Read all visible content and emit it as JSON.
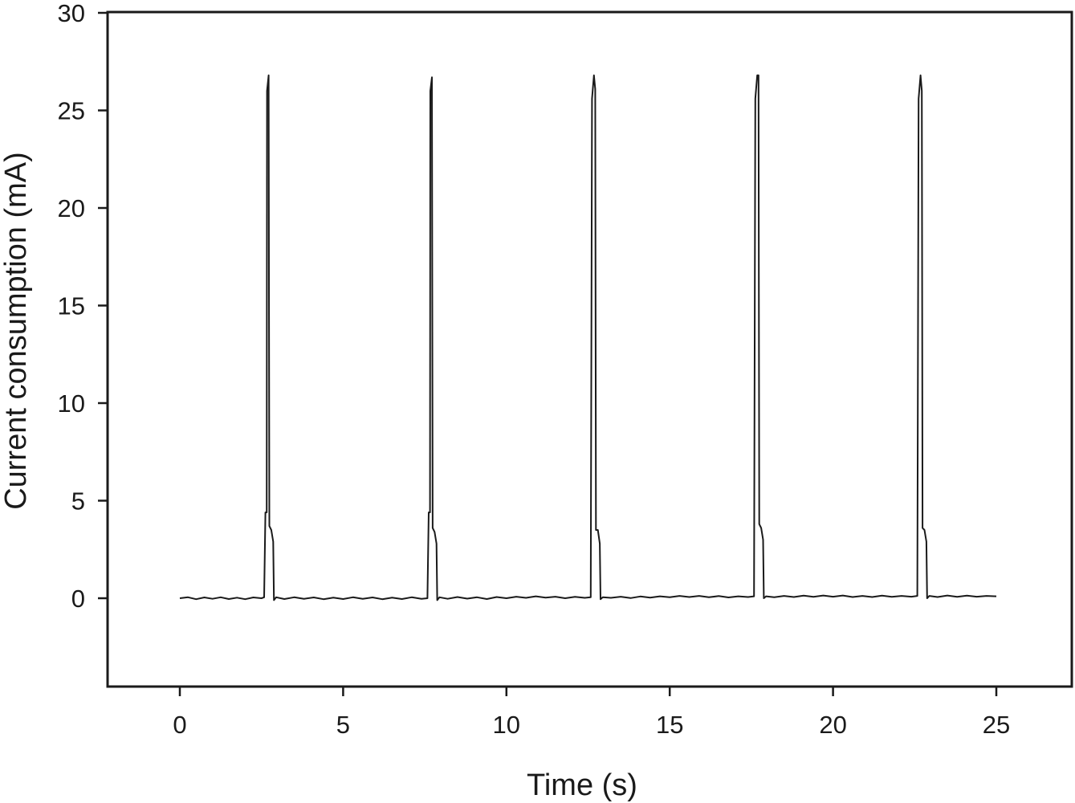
{
  "chart_data": {
    "type": "line",
    "title": "",
    "xlabel": "Time (s)",
    "ylabel": "Current consumption (mA)",
    "xlim": [
      -2.2,
      27.3
    ],
    "ylim": [
      -4.5,
      30
    ],
    "grid": false,
    "x_ticks": [
      0,
      5,
      10,
      15,
      20,
      25
    ],
    "y_ticks": [
      0,
      5,
      10,
      15,
      20,
      25,
      30
    ],
    "x_tick_labels": [
      "0",
      "5",
      "10",
      "15",
      "20",
      "25"
    ],
    "y_tick_labels": [
      "0",
      "5",
      "10",
      "15",
      "20",
      "25",
      "30"
    ],
    "series": [
      {
        "baseline_current": 0.0,
        "pulse_start_times": [
          2.6,
          7.6,
          12.6,
          17.6,
          22.6
        ],
        "peak_current": 26.8,
        "points": [
          [
            0.0,
            0.0
          ],
          [
            0.25,
            0.05
          ],
          [
            0.5,
            -0.05
          ],
          [
            0.75,
            0.04
          ],
          [
            1.0,
            -0.03
          ],
          [
            1.25,
            0.05
          ],
          [
            1.5,
            -0.04
          ],
          [
            1.75,
            0.03
          ],
          [
            2.0,
            -0.05
          ],
          [
            2.25,
            0.04
          ],
          [
            2.5,
            0.0
          ],
          [
            2.58,
            0.05
          ],
          [
            2.62,
            4.4
          ],
          [
            2.66,
            4.4
          ],
          [
            2.67,
            26.0
          ],
          [
            2.72,
            26.8
          ],
          [
            2.74,
            3.7
          ],
          [
            2.8,
            3.5
          ],
          [
            2.86,
            2.9
          ],
          [
            2.88,
            -0.1
          ],
          [
            2.95,
            0.05
          ],
          [
            3.2,
            -0.04
          ],
          [
            3.5,
            0.05
          ],
          [
            3.8,
            -0.03
          ],
          [
            4.1,
            0.04
          ],
          [
            4.4,
            -0.05
          ],
          [
            4.7,
            0.03
          ],
          [
            5.0,
            -0.04
          ],
          [
            5.3,
            0.05
          ],
          [
            5.6,
            -0.03
          ],
          [
            5.9,
            0.04
          ],
          [
            6.2,
            -0.05
          ],
          [
            6.5,
            0.03
          ],
          [
            6.8,
            -0.04
          ],
          [
            7.1,
            0.05
          ],
          [
            7.4,
            -0.03
          ],
          [
            7.58,
            0.0
          ],
          [
            7.62,
            4.4
          ],
          [
            7.66,
            4.4
          ],
          [
            7.67,
            26.0
          ],
          [
            7.72,
            26.7
          ],
          [
            7.74,
            3.6
          ],
          [
            7.8,
            3.4
          ],
          [
            7.86,
            2.8
          ],
          [
            7.88,
            -0.1
          ],
          [
            7.95,
            0.05
          ],
          [
            8.2,
            -0.03
          ],
          [
            8.5,
            0.06
          ],
          [
            8.8,
            -0.02
          ],
          [
            9.1,
            0.05
          ],
          [
            9.4,
            -0.04
          ],
          [
            9.7,
            0.06
          ],
          [
            10.0,
            0.0
          ],
          [
            10.3,
            0.08
          ],
          [
            10.6,
            0.02
          ],
          [
            10.9,
            0.1
          ],
          [
            11.2,
            0.03
          ],
          [
            11.5,
            0.08
          ],
          [
            11.8,
            0.0
          ],
          [
            12.1,
            0.07
          ],
          [
            12.4,
            0.02
          ],
          [
            12.58,
            0.05
          ],
          [
            12.62,
            25.6
          ],
          [
            12.68,
            26.8
          ],
          [
            12.72,
            26.1
          ],
          [
            12.74,
            3.5
          ],
          [
            12.8,
            3.5
          ],
          [
            12.86,
            2.8
          ],
          [
            12.88,
            -0.05
          ],
          [
            12.95,
            0.05
          ],
          [
            13.2,
            0.02
          ],
          [
            13.5,
            0.08
          ],
          [
            13.8,
            0.01
          ],
          [
            14.1,
            0.09
          ],
          [
            14.4,
            0.03
          ],
          [
            14.7,
            0.1
          ],
          [
            15.0,
            0.05
          ],
          [
            15.3,
            0.12
          ],
          [
            15.6,
            0.06
          ],
          [
            15.9,
            0.12
          ],
          [
            16.2,
            0.05
          ],
          [
            16.5,
            0.11
          ],
          [
            16.8,
            0.04
          ],
          [
            17.1,
            0.1
          ],
          [
            17.4,
            0.06
          ],
          [
            17.58,
            0.1
          ],
          [
            17.62,
            25.6
          ],
          [
            17.68,
            26.8
          ],
          [
            17.72,
            26.8
          ],
          [
            17.74,
            3.8
          ],
          [
            17.8,
            3.6
          ],
          [
            17.86,
            3.0
          ],
          [
            17.88,
            0.0
          ],
          [
            17.95,
            0.1
          ],
          [
            18.2,
            0.05
          ],
          [
            18.5,
            0.12
          ],
          [
            18.8,
            0.06
          ],
          [
            19.1,
            0.13
          ],
          [
            19.4,
            0.07
          ],
          [
            19.7,
            0.14
          ],
          [
            20.0,
            0.08
          ],
          [
            20.3,
            0.14
          ],
          [
            20.6,
            0.06
          ],
          [
            20.9,
            0.12
          ],
          [
            21.2,
            0.06
          ],
          [
            21.5,
            0.13
          ],
          [
            21.8,
            0.07
          ],
          [
            22.1,
            0.12
          ],
          [
            22.4,
            0.08
          ],
          [
            22.58,
            0.12
          ],
          [
            22.62,
            25.6
          ],
          [
            22.68,
            26.8
          ],
          [
            22.72,
            26.0
          ],
          [
            22.74,
            3.6
          ],
          [
            22.8,
            3.5
          ],
          [
            22.86,
            2.9
          ],
          [
            22.88,
            0.0
          ],
          [
            22.95,
            0.12
          ],
          [
            23.2,
            0.06
          ],
          [
            23.5,
            0.14
          ],
          [
            23.8,
            0.07
          ],
          [
            24.1,
            0.13
          ],
          [
            24.4,
            0.08
          ],
          [
            24.7,
            0.12
          ],
          [
            25.0,
            0.1
          ]
        ]
      }
    ]
  }
}
